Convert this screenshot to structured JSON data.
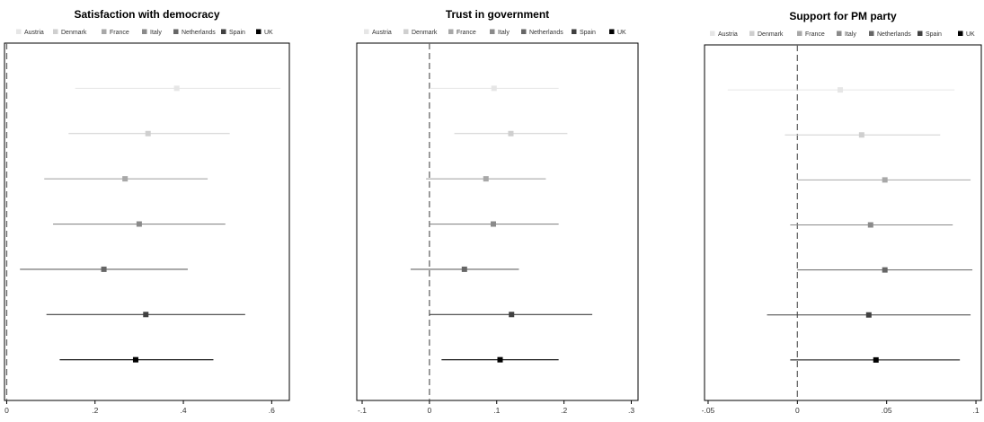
{
  "chart_data": [
    {
      "type": "scatter",
      "title": "Satisfaction with democracy",
      "series_names": [
        "Austria",
        "Denmark",
        "France",
        "Italy",
        "Netherlands",
        "Spain",
        "UK"
      ],
      "estimates": [
        0.385,
        0.32,
        0.268,
        0.3,
        0.22,
        0.315,
        0.292
      ],
      "ci_low": [
        0.155,
        0.14,
        0.085,
        0.105,
        0.03,
        0.09,
        0.12
      ],
      "ci_high": [
        0.62,
        0.505,
        0.455,
        0.495,
        0.41,
        0.54,
        0.468
      ],
      "xticks": [
        0,
        0.2,
        0.4,
        0.6
      ],
      "xtick_labels": [
        "0",
        ".2",
        ".4",
        ".6"
      ],
      "xlim": [
        -0.005,
        0.64
      ],
      "reference_line": 0,
      "legend": "top"
    },
    {
      "type": "scatter",
      "title": "Trust in government",
      "series_names": [
        "Austria",
        "Denmark",
        "France",
        "Italy",
        "Netherlands",
        "Spain",
        "UK"
      ],
      "estimates": [
        0.096,
        0.121,
        0.084,
        0.095,
        0.052,
        0.122,
        0.105
      ],
      "ci_low": [
        0.0,
        0.037,
        -0.005,
        0.0,
        -0.028,
        0.0,
        0.018
      ],
      "ci_high": [
        0.192,
        0.205,
        0.173,
        0.192,
        0.133,
        0.242,
        0.192
      ],
      "xticks": [
        -0.1,
        0,
        0.1,
        0.2,
        0.3
      ],
      "xtick_labels": [
        "-.1",
        "0",
        ".1",
        ".2",
        ".3"
      ],
      "xlim": [
        -0.108,
        0.31
      ],
      "reference_line": 0,
      "legend": "top"
    },
    {
      "type": "scatter",
      "title": "Support for PM party",
      "series_names": [
        "Austria",
        "Denmark",
        "France",
        "Italy",
        "Netherlands",
        "Spain",
        "UK"
      ],
      "estimates": [
        0.024,
        0.036,
        0.049,
        0.041,
        0.049,
        0.04,
        0.044
      ],
      "ci_low": [
        -0.039,
        -0.007,
        0.0,
        -0.004,
        0.0,
        -0.017,
        -0.004
      ],
      "ci_high": [
        0.088,
        0.08,
        0.097,
        0.087,
        0.098,
        0.097,
        0.091
      ],
      "xticks": [
        -0.05,
        0,
        0.05,
        0.1
      ],
      "xtick_labels": [
        "-.05",
        "0",
        ".05",
        ".1"
      ],
      "xlim": [
        -0.052,
        0.103
      ],
      "reference_line": 0,
      "legend": "top"
    }
  ],
  "colors": {
    "series": [
      "#e6e6e6",
      "#cfcfcf",
      "#a8a8a8",
      "#8a8a8a",
      "#666666",
      "#404040",
      "#000000"
    ],
    "reference_line": "#666666",
    "frame": "#000000"
  }
}
